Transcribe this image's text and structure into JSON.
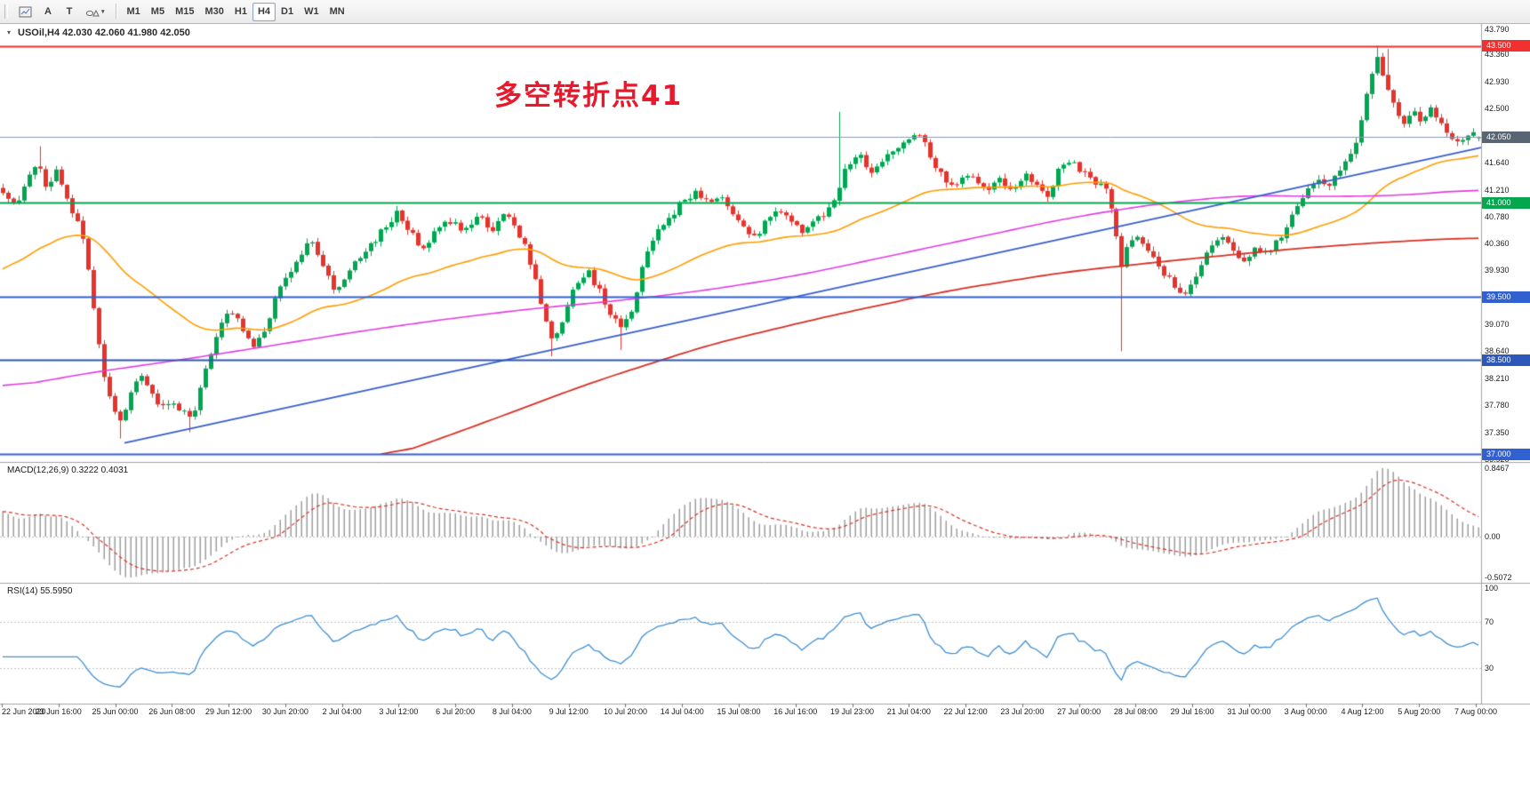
{
  "toolbar": {
    "tools": [
      {
        "name": "chart-objects",
        "label": ""
      },
      {
        "name": "text-annotation",
        "label": "A"
      },
      {
        "name": "label-tool",
        "label": "T"
      },
      {
        "name": "shapes-dropdown",
        "label": ""
      }
    ],
    "timeframes": [
      {
        "label": "M1",
        "active": false
      },
      {
        "label": "M5",
        "active": false
      },
      {
        "label": "M15",
        "active": false
      },
      {
        "label": "M30",
        "active": false
      },
      {
        "label": "H1",
        "active": false
      },
      {
        "label": "H4",
        "active": true
      },
      {
        "label": "D1",
        "active": false
      },
      {
        "label": "W1",
        "active": false
      },
      {
        "label": "MN",
        "active": false
      }
    ]
  },
  "icons": {
    "caret": "▾",
    "symbol_marker": "▾"
  },
  "chart_header": {
    "symbol_line": "USOil,H4  42.030 42.060 41.980 42.050"
  },
  "annotation": {
    "text": "多空转折点41",
    "color": "#e8192c"
  },
  "price_scale": {
    "gridlines": [
      {
        "text": "43.790",
        "value": 43.79
      },
      {
        "text": "43.360",
        "value": 43.36
      },
      {
        "text": "42.930",
        "value": 42.93
      },
      {
        "text": "42.500",
        "value": 42.5
      },
      {
        "text": "41.640",
        "value": 41.64
      },
      {
        "text": "41.210",
        "value": 41.21
      },
      {
        "text": "40.780",
        "value": 40.78
      },
      {
        "text": "40.360",
        "value": 40.36
      },
      {
        "text": "39.930",
        "value": 39.93
      },
      {
        "text": "39.070",
        "value": 39.07
      },
      {
        "text": "38.640",
        "value": 38.64
      },
      {
        "text": "38.210",
        "value": 38.21
      },
      {
        "text": "37.780",
        "value": 37.78
      },
      {
        "text": "37.350",
        "value": 37.35
      },
      {
        "text": "36.920",
        "value": 36.92
      }
    ],
    "tags": [
      {
        "text": "43.500",
        "value": 43.5,
        "color": "#f23030",
        "name": "resistance-price-tag"
      },
      {
        "text": "42.050",
        "value": 42.05,
        "color": "#5a6573",
        "name": "current-price-tag"
      },
      {
        "text": "41.000",
        "value": 41.0,
        "color": "#06a64f",
        "name": "green-level-price-tag"
      },
      {
        "text": "39.500",
        "value": 39.5,
        "color": "#3161d1",
        "name": "blue-level-price-tag-1"
      },
      {
        "text": "38.500",
        "value": 38.5,
        "color": "#2d57b8",
        "name": "blue-level-price-tag-2"
      },
      {
        "text": "37.000",
        "value": 37.0,
        "color": "#3161d1",
        "name": "blue-level-price-tag-3"
      }
    ]
  },
  "indicators": {
    "macd": {
      "header": "MACD(12,26,9) 0.3222 0.4031",
      "fast": 12,
      "slow": 26,
      "signal": 9,
      "current_main": 0.3222,
      "current_signal": 0.4031,
      "scale_labels": [
        "0.8467",
        "0.00",
        "-0.5072"
      ],
      "histogram_color": "#9e9e9e",
      "signal_color": "#d93025"
    },
    "rsi": {
      "header": "RSI(14) 55.5950",
      "period": 14,
      "current": 55.595,
      "scale_labels": [
        "100",
        "70",
        "30"
      ],
      "levels": [
        70,
        30
      ],
      "line_color": "#3f8fd2"
    }
  },
  "time_axis": {
    "labels": [
      "22 Jun 2020",
      "23 Jun 16:00",
      "25 Jun 00:00",
      "26 Jun 08:00",
      "29 Jun 12:00",
      "30 Jun 20:00",
      "2 Jul 04:00",
      "3 Jul 12:00",
      "6 Jul 20:00",
      "8 Jul 04:00",
      "9 Jul 12:00",
      "10 Jul 20:00",
      "14 Jul 04:00",
      "15 Jul 08:00",
      "16 Jul 16:00",
      "19 Jul 23:00",
      "21 Jul 04:00",
      "22 Jul 12:00",
      "23 Jul 20:00",
      "27 Jul 00:00",
      "28 Jul 08:00",
      "29 Jul 16:00",
      "31 Jul 00:00",
      "3 Aug 00:00",
      "4 Aug 12:00",
      "5 Aug 20:00",
      "7 Aug 00:00"
    ]
  },
  "chart_data": {
    "type": "candlestick",
    "symbol": "USOil",
    "timeframe": "H4",
    "last_ohlc": {
      "open": 42.03,
      "high": 42.06,
      "low": 41.98,
      "close": 42.05
    },
    "visible_price_range": [
      36.92,
      43.79
    ],
    "visible_time_range": [
      "22 Jun 2020",
      "7 Aug 00:00"
    ],
    "bars": 278,
    "candle_colors": {
      "bull": "#00a651",
      "bear": "#e3342e"
    },
    "price_path_anchors": [
      [
        0,
        41.2
      ],
      [
        0.008,
        40.95
      ],
      [
        0.016,
        41.35
      ],
      [
        0.024,
        41.65
      ],
      [
        0.03,
        41.15
      ],
      [
        0.036,
        41.55
      ],
      [
        0.044,
        41.05
      ],
      [
        0.05,
        40.7
      ],
      [
        0.056,
        40.3
      ],
      [
        0.062,
        39.2
      ],
      [
        0.068,
        38.3
      ],
      [
        0.074,
        37.75
      ],
      [
        0.08,
        37.45
      ],
      [
        0.086,
        37.95
      ],
      [
        0.092,
        38.3
      ],
      [
        0.098,
        38.1
      ],
      [
        0.104,
        37.75
      ],
      [
        0.112,
        37.85
      ],
      [
        0.12,
        37.7
      ],
      [
        0.128,
        37.55
      ],
      [
        0.134,
        38.1
      ],
      [
        0.14,
        38.6
      ],
      [
        0.148,
        39.1
      ],
      [
        0.154,
        39.3
      ],
      [
        0.162,
        39
      ],
      [
        0.17,
        38.65
      ],
      [
        0.178,
        39.05
      ],
      [
        0.186,
        39.55
      ],
      [
        0.194,
        39.9
      ],
      [
        0.202,
        40.2
      ],
      [
        0.208,
        40.38
      ],
      [
        0.216,
        40
      ],
      [
        0.224,
        39.62
      ],
      [
        0.232,
        39.85
      ],
      [
        0.24,
        40.1
      ],
      [
        0.25,
        40.35
      ],
      [
        0.26,
        40.62
      ],
      [
        0.268,
        40.85
      ],
      [
        0.276,
        40.55
      ],
      [
        0.284,
        40.25
      ],
      [
        0.292,
        40.52
      ],
      [
        0.302,
        40.72
      ],
      [
        0.312,
        40.55
      ],
      [
        0.322,
        40.75
      ],
      [
        0.332,
        40.6
      ],
      [
        0.34,
        40.88
      ],
      [
        0.348,
        40.62
      ],
      [
        0.356,
        40.2
      ],
      [
        0.364,
        39.45
      ],
      [
        0.372,
        38.8
      ],
      [
        0.38,
        39.2
      ],
      [
        0.388,
        39.7
      ],
      [
        0.396,
        39.92
      ],
      [
        0.404,
        39.6
      ],
      [
        0.412,
        39.2
      ],
      [
        0.42,
        38.98
      ],
      [
        0.428,
        39.4
      ],
      [
        0.434,
        40.12
      ],
      [
        0.442,
        40.48
      ],
      [
        0.452,
        40.78
      ],
      [
        0.462,
        41.08
      ],
      [
        0.47,
        41.18
      ],
      [
        0.478,
        40.98
      ],
      [
        0.486,
        41.12
      ],
      [
        0.494,
        40.88
      ],
      [
        0.502,
        40.58
      ],
      [
        0.51,
        40.48
      ],
      [
        0.518,
        40.72
      ],
      [
        0.526,
        40.88
      ],
      [
        0.534,
        40.68
      ],
      [
        0.542,
        40.52
      ],
      [
        0.55,
        40.68
      ],
      [
        0.558,
        40.88
      ],
      [
        0.566,
        41.15
      ],
      [
        0.572,
        41.62
      ],
      [
        0.58,
        41.78
      ],
      [
        0.588,
        41.48
      ],
      [
        0.596,
        41.62
      ],
      [
        0.604,
        41.88
      ],
      [
        0.612,
        41.98
      ],
      [
        0.62,
        42.08
      ],
      [
        0.628,
        41.78
      ],
      [
        0.636,
        41.42
      ],
      [
        0.644,
        41.28
      ],
      [
        0.652,
        41.48
      ],
      [
        0.66,
        41.32
      ],
      [
        0.668,
        41.18
      ],
      [
        0.676,
        41.38
      ],
      [
        0.684,
        41.22
      ],
      [
        0.692,
        41.46
      ],
      [
        0.7,
        41.32
      ],
      [
        0.708,
        41.12
      ],
      [
        0.716,
        41.56
      ],
      [
        0.724,
        41.7
      ],
      [
        0.732,
        41.46
      ],
      [
        0.74,
        41.35
      ],
      [
        0.748,
        41.18
      ],
      [
        0.753,
        40.7
      ],
      [
        0.757,
        39.95
      ],
      [
        0.762,
        40.28
      ],
      [
        0.77,
        40.48
      ],
      [
        0.778,
        40.22
      ],
      [
        0.786,
        39.92
      ],
      [
        0.794,
        39.66
      ],
      [
        0.802,
        39.55
      ],
      [
        0.81,
        39.92
      ],
      [
        0.818,
        40.26
      ],
      [
        0.826,
        40.45
      ],
      [
        0.834,
        40.22
      ],
      [
        0.842,
        40.02
      ],
      [
        0.85,
        40.3
      ],
      [
        0.858,
        40.16
      ],
      [
        0.866,
        40.48
      ],
      [
        0.874,
        40.8
      ],
      [
        0.882,
        41.1
      ],
      [
        0.89,
        41.36
      ],
      [
        0.898,
        41.22
      ],
      [
        0.906,
        41.56
      ],
      [
        0.914,
        41.76
      ],
      [
        0.92,
        42.25
      ],
      [
        0.926,
        42.95
      ],
      [
        0.932,
        43.32
      ],
      [
        0.938,
        42.85
      ],
      [
        0.944,
        42.42
      ],
      [
        0.95,
        42.22
      ],
      [
        0.956,
        42.46
      ],
      [
        0.962,
        42.3
      ],
      [
        0.968,
        42.5
      ],
      [
        0.974,
        42.26
      ],
      [
        0.98,
        42.12
      ],
      [
        0.986,
        41.96
      ],
      [
        0.992,
        42.1
      ],
      [
        1,
        42.05
      ]
    ],
    "wick_events": [
      {
        "f": 0.024,
        "type": "high",
        "price": 41.9
      },
      {
        "f": 0.08,
        "type": "low",
        "price": 37.25
      },
      {
        "f": 0.128,
        "type": "low",
        "price": 37.35
      },
      {
        "f": 0.372,
        "type": "low",
        "price": 38.56
      },
      {
        "f": 0.42,
        "type": "low",
        "price": 38.66
      },
      {
        "f": 0.568,
        "type": "high",
        "price": 42.45
      },
      {
        "f": 0.757,
        "type": "low",
        "price": 38.64
      },
      {
        "f": 0.932,
        "type": "high",
        "price": 43.5
      },
      {
        "f": 0.938,
        "type": "high",
        "price": 43.45
      }
    ],
    "horizontal_lines": [
      {
        "price": 43.5,
        "color": "#f72b2b",
        "width": 2,
        "role": "resistance"
      },
      {
        "price": 42.05,
        "color": "#8d9bab",
        "width": 1,
        "role": "current-price"
      },
      {
        "price": 41.0,
        "color": "#06a64f",
        "width": 2,
        "role": "pivot"
      },
      {
        "price": 39.5,
        "color": "#3161d1",
        "width": 2,
        "role": "support"
      },
      {
        "price": 38.5,
        "color": "#2d57b8",
        "width": 2,
        "role": "support"
      },
      {
        "price": 37.0,
        "color": "#3161d1",
        "width": 2,
        "role": "support"
      }
    ],
    "trendline": {
      "from": [
        0.084,
        37.18
      ],
      "to": [
        1.0,
        41.88
      ],
      "color": "#3a5fcd",
      "width": 2
    },
    "moving_averages": [
      {
        "name": "fast",
        "type": "EMA",
        "period": 50,
        "init": 39.9,
        "color": "#ff9d00"
      },
      {
        "name": "mid",
        "color": "#e23de2",
        "anchors": [
          [
            0,
            38.05
          ],
          [
            0.06,
            38.3
          ],
          [
            0.12,
            38.5
          ],
          [
            0.18,
            38.72
          ],
          [
            0.24,
            38.95
          ],
          [
            0.3,
            39.15
          ],
          [
            0.36,
            39.32
          ],
          [
            0.42,
            39.45
          ],
          [
            0.48,
            39.62
          ],
          [
            0.54,
            39.85
          ],
          [
            0.6,
            40.15
          ],
          [
            0.66,
            40.45
          ],
          [
            0.72,
            40.75
          ],
          [
            0.78,
            40.98
          ],
          [
            0.84,
            41.12
          ],
          [
            0.9,
            41.1
          ],
          [
            0.95,
            41.12
          ],
          [
            1,
            41.22
          ]
        ]
      },
      {
        "name": "slow",
        "color": "#d93025",
        "anchors": [
          [
            0.255,
            36.9
          ],
          [
            0.32,
            37.45
          ],
          [
            0.4,
            38.15
          ],
          [
            0.48,
            38.75
          ],
          [
            0.56,
            39.2
          ],
          [
            0.64,
            39.6
          ],
          [
            0.72,
            39.9
          ],
          [
            0.8,
            40.1
          ],
          [
            0.88,
            40.28
          ],
          [
            0.94,
            40.38
          ],
          [
            1,
            40.45
          ]
        ]
      }
    ]
  }
}
